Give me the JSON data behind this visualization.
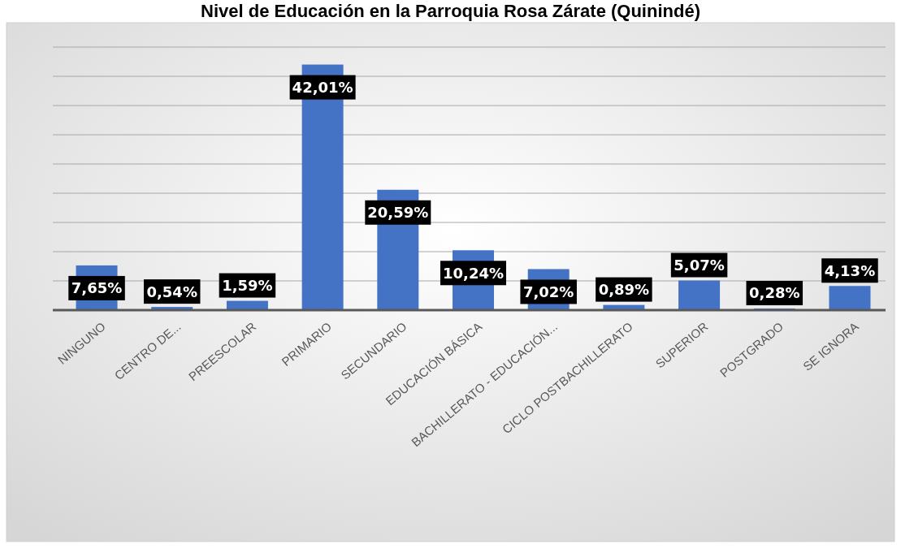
{
  "chart_data": {
    "type": "bar",
    "title": "Nivel de Educación en la Parroquia Rosa Zárate (Quinindé)",
    "categories": [
      "NINGUNO",
      "CENTRO DE...",
      "PREESCOLAR",
      "PRIMARIO",
      "SECUNDARIO",
      "EDUCACIÓN BÁSICA",
      "BACHILLERATO - EDUCACIÓN...",
      "CICLO POSTBACHILLERATO",
      "SUPERIOR",
      "POSTGRADO",
      "SE IGNORA"
    ],
    "values": [
      7.65,
      0.54,
      1.59,
      42.01,
      20.59,
      10.24,
      7.02,
      0.89,
      5.07,
      0.28,
      4.13
    ],
    "value_labels": [
      "7,65%",
      "0,54%",
      "1,59%",
      "42,01%",
      "20,59%",
      "10,24%",
      "7,02%",
      "0,89%",
      "5,07%",
      "0,28%",
      "4,13%"
    ],
    "color": "#4472c4",
    "ylim": [
      0,
      45
    ],
    "yticks": [
      {
        "value": 0,
        "label": null
      },
      {
        "value": 5,
        "label": null
      },
      {
        "value": 10,
        "label": null
      },
      {
        "value": 15,
        "label": null
      },
      {
        "value": 20,
        "label": null
      },
      {
        "value": 25,
        "label": null
      },
      {
        "value": 30,
        "label": null
      },
      {
        "value": 35,
        "label": null
      },
      {
        "value": 40,
        "label": null
      },
      {
        "value": 45,
        "label": null
      }
    ],
    "grid": "y",
    "tick_labels": "x"
  }
}
